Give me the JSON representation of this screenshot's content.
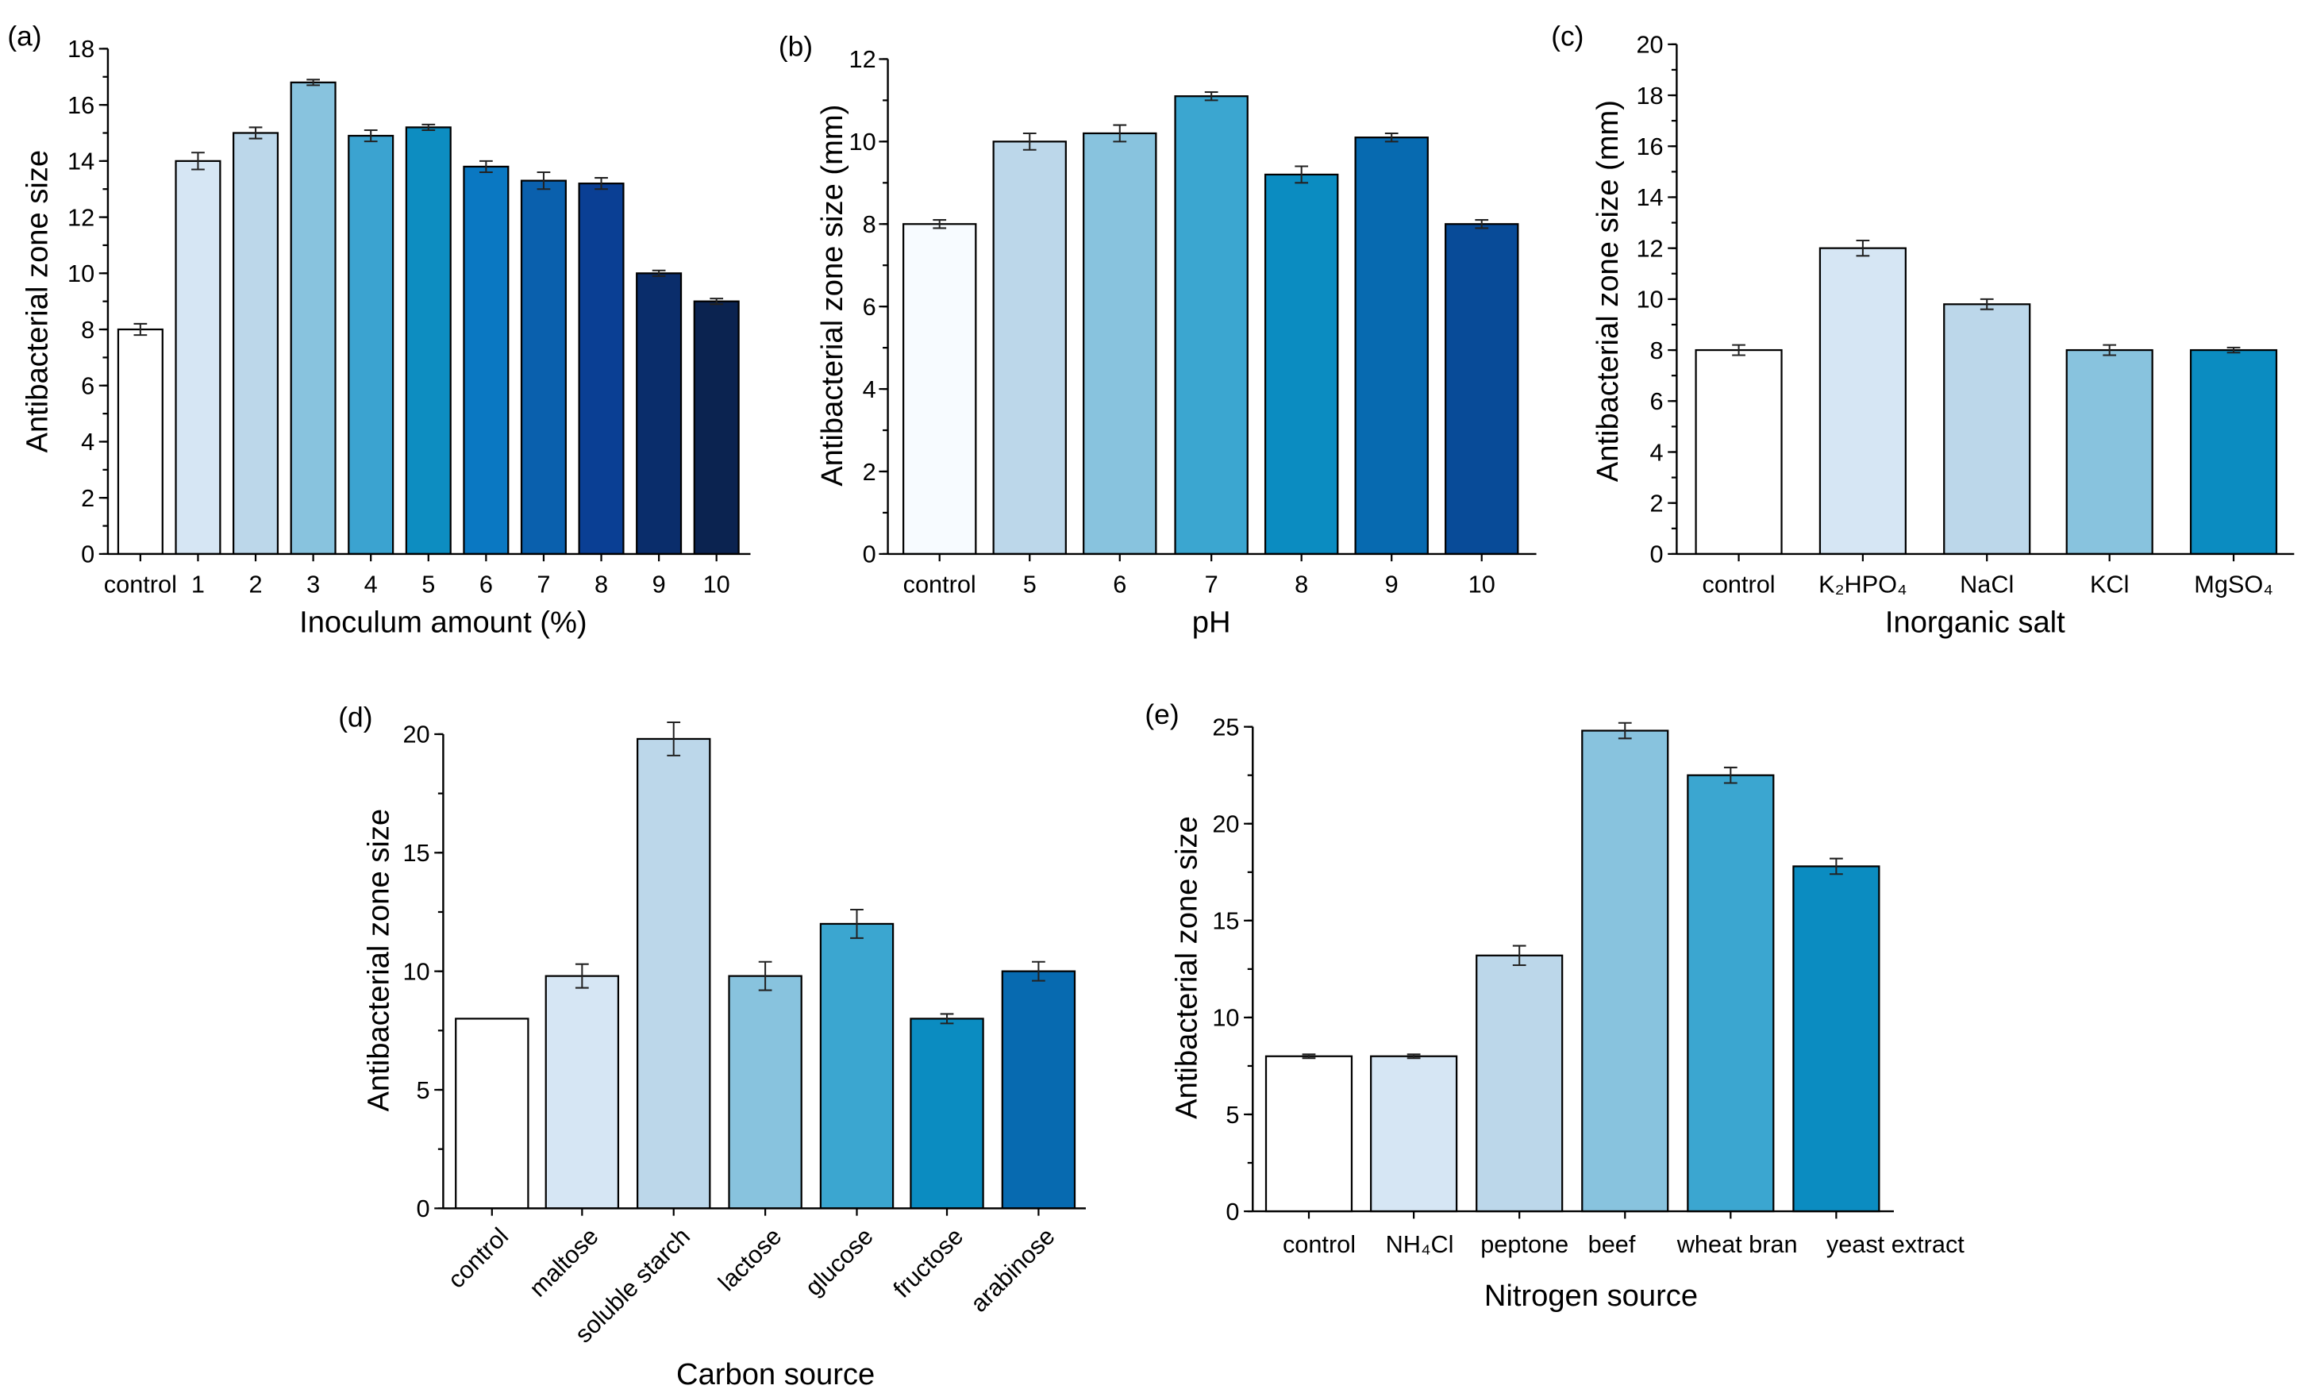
{
  "chart_data": [
    {
      "panel_label": "(a)",
      "type": "bar",
      "categories": [
        "control",
        "1",
        "2",
        "3",
        "4",
        "5",
        "6",
        "7",
        "8",
        "9",
        "10"
      ],
      "values": [
        8.0,
        14.0,
        15.0,
        16.8,
        14.9,
        15.2,
        13.8,
        13.3,
        13.2,
        10.0,
        9.0
      ],
      "errors": [
        0.2,
        0.3,
        0.2,
        0.1,
        0.2,
        0.1,
        0.2,
        0.3,
        0.2,
        0.1,
        0.1
      ],
      "colors": [
        "#ffffff",
        "#d6e6f4",
        "#bcd7ea",
        "#88c3de",
        "#3ba3d0",
        "#0d8dc1",
        "#0a78c2",
        "#0a60ad",
        "#0a3f94",
        "#0a2d6b",
        "#0b2350"
      ],
      "xlabel": "Inoculum amount (%)",
      "ylabel": "Antibacterial zone size",
      "ylim": [
        0,
        18
      ],
      "yticks": [
        0,
        2,
        4,
        6,
        8,
        10,
        12,
        14,
        16,
        18
      ]
    },
    {
      "panel_label": "(b)",
      "type": "bar",
      "categories": [
        "control",
        "5",
        "6",
        "7",
        "8",
        "9",
        "10"
      ],
      "values": [
        8.0,
        10.0,
        10.2,
        11.1,
        9.2,
        10.1,
        8.0
      ],
      "errors": [
        0.1,
        0.2,
        0.2,
        0.1,
        0.2,
        0.1,
        0.1
      ],
      "colors": [
        "#f7fbff",
        "#bcd7ea",
        "#88c3de",
        "#3ba6d0",
        "#0b8cc1",
        "#076ab0",
        "#084b98"
      ],
      "xlabel": "pH",
      "ylabel": "Antibacterial zone size (mm)",
      "ylim": [
        0,
        12
      ],
      "yticks": [
        0,
        2,
        4,
        6,
        8,
        10,
        12
      ]
    },
    {
      "panel_label": "(c)",
      "type": "bar",
      "categories": [
        "control",
        "K₂HPO₄",
        "NaCl",
        "KCl",
        "MgSO₄"
      ],
      "values": [
        8.0,
        12.0,
        9.8,
        8.0,
        8.0
      ],
      "errors": [
        0.2,
        0.3,
        0.2,
        0.2,
        0.1
      ],
      "colors": [
        "#ffffff",
        "#d6e6f4",
        "#bcd7ea",
        "#88c3de",
        "#0b8cc1"
      ],
      "xlabel": "Inorganic salt",
      "ylabel": "Antibacterial zone size (mm)",
      "ylim": [
        0,
        20
      ],
      "yticks": [
        0,
        2,
        4,
        6,
        8,
        10,
        12,
        14,
        16,
        18,
        20
      ]
    },
    {
      "panel_label": "(d)",
      "type": "bar",
      "categories": [
        "control",
        "maltose",
        "soluble starch",
        "lactose",
        "glucose",
        "fructose",
        "arabinose"
      ],
      "values": [
        8.0,
        9.8,
        19.8,
        9.8,
        12.0,
        8.0,
        10.0
      ],
      "errors": [
        0,
        0.5,
        0.7,
        0.6,
        0.6,
        0.2,
        0.4
      ],
      "colors": [
        "#ffffff",
        "#d6e6f4",
        "#bcd7ea",
        "#88c3de",
        "#3ba6d0",
        "#0b8cc1",
        "#076ab0"
      ],
      "xlabel": "Carbon source",
      "ylabel": "Antibacterial zone size",
      "ylim": [
        0,
        20
      ],
      "yticks": [
        0,
        5,
        10,
        15,
        20
      ]
    },
    {
      "panel_label": "(e)",
      "type": "bar",
      "categories": [
        "control",
        "NH₄Cl",
        "peptone",
        "beef",
        "wheat bran",
        "yeast extract"
      ],
      "values": [
        8.0,
        8.0,
        13.2,
        24.8,
        22.5,
        17.8
      ],
      "errors": [
        0.1,
        0.1,
        0.5,
        0.4,
        0.4,
        0.4
      ],
      "colors": [
        "#ffffff",
        "#d6e6f4",
        "#bcd7ea",
        "#88c3de",
        "#3ba6d0",
        "#0b8cc1"
      ],
      "xlabel": "Nitrogen source",
      "ylabel": "Antibacterial zone size",
      "ylim": [
        0,
        25
      ],
      "yticks": [
        0,
        5,
        10,
        15,
        20,
        25
      ]
    }
  ]
}
